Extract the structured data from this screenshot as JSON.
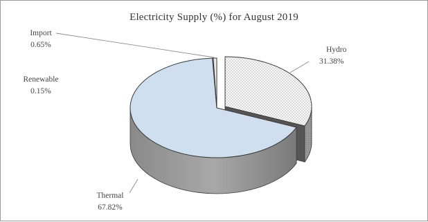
{
  "chart_data": {
    "type": "pie",
    "style": "3d-exploded",
    "title": "Electricity Supply (%) for August 2019",
    "slices": [
      {
        "name": "Hydro",
        "value": 31.38,
        "label": "31.38%",
        "fill": "#f2f2f2",
        "exploded": true
      },
      {
        "name": "Thermal",
        "value": 67.82,
        "label": "67.82%",
        "fill": "#cfdff0",
        "exploded": false
      },
      {
        "name": "Renewable",
        "value": 0.15,
        "label": "0.15%",
        "fill": "#d8d8d8",
        "exploded": false
      },
      {
        "name": "Import",
        "value": 0.65,
        "label": "0.65%",
        "fill": "#e8e8e8",
        "exploded": false
      }
    ],
    "legend": "none",
    "labels": "outside-with-leader-lines"
  },
  "colors": {
    "hydro_top": "#f2f2f2",
    "thermal_top": "#cfdff0",
    "side_light": "#a9a9a9",
    "side_dark": "#444444",
    "outline": "#3a3a3a"
  }
}
